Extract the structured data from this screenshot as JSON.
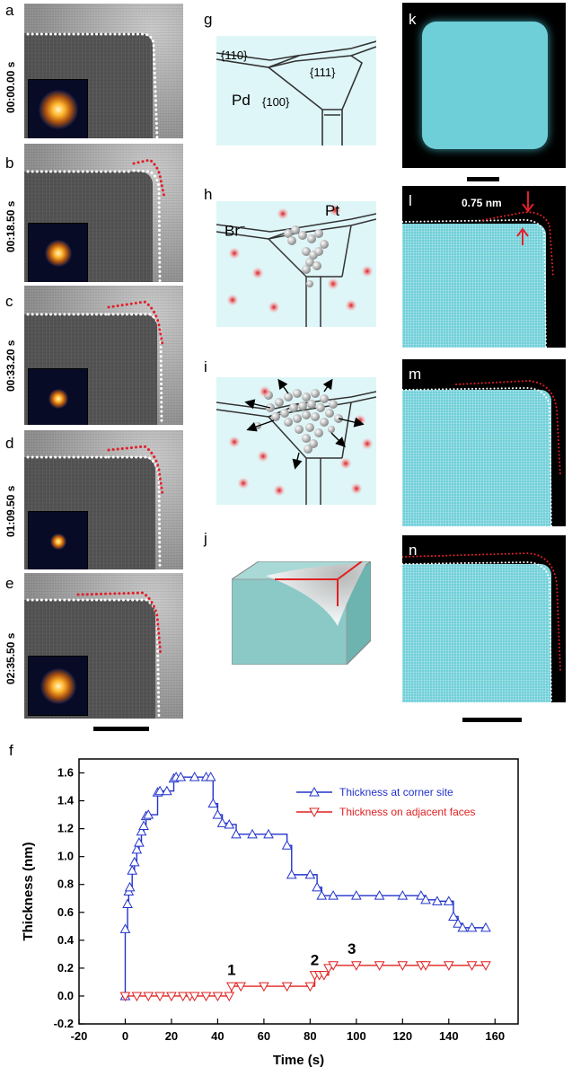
{
  "panels_left": [
    {
      "letter": "a",
      "time": "00:00.00 s"
    },
    {
      "letter": "b",
      "time": "00:18.50 s"
    },
    {
      "letter": "c",
      "time": "00:33.20 s"
    },
    {
      "letter": "d",
      "time": "01:09.50 s"
    },
    {
      "letter": "e",
      "time": "02:35.50 s"
    }
  ],
  "schematic": {
    "g_letter": "g",
    "g_face110": "{110}",
    "g_face111": "{111}",
    "g_pd": "Pd",
    "g_face100": "{100}",
    "h_letter": "h",
    "h_pt": "Pt",
    "h_br": "Br",
    "h_br_sup": "−",
    "i_letter": "i",
    "j_letter": "j"
  },
  "panels_right": {
    "k": "k",
    "l": "l",
    "l_annotation": "0.75 nm",
    "m": "m",
    "n": "n"
  },
  "colors": {
    "corner_series": "#2233cc",
    "faces_series": "#e02020",
    "crystal": "#6fcfd8",
    "schematic_bg": "#dff6f8",
    "dots_white": "#ffffff",
    "dots_red": "#e0202a"
  },
  "chart_data": {
    "type": "line",
    "panel_letter": "f",
    "xlabel": "Time (s)",
    "ylabel": "Thickness (nm)",
    "xlim": [
      -20,
      170
    ],
    "ylim": [
      -0.2,
      1.7
    ],
    "xticks": [
      -20,
      0,
      20,
      40,
      60,
      80,
      100,
      120,
      140,
      160
    ],
    "yticks": [
      -0.2,
      0.0,
      0.2,
      0.4,
      0.6,
      0.8,
      1.0,
      1.2,
      1.4,
      1.6
    ],
    "legend_position": "top-right",
    "annotations": [
      "1",
      "2",
      "3"
    ],
    "series": [
      {
        "name": "Thickness at corner site",
        "marker": "triangle-up",
        "x": [
          0,
          0,
          1,
          1.5,
          2,
          3,
          4,
          5,
          6,
          7,
          8,
          9,
          10,
          14,
          15,
          18,
          21,
          22,
          24,
          30,
          35,
          37,
          38,
          40,
          42,
          45,
          48,
          55,
          62,
          70,
          72,
          80,
          83,
          85,
          90,
          100,
          110,
          120,
          128,
          130,
          135,
          140,
          142,
          144,
          146,
          150,
          156
        ],
        "y": [
          0,
          0.48,
          0.66,
          0.75,
          0.78,
          0.9,
          0.96,
          1.05,
          1.1,
          1.18,
          1.22,
          1.29,
          1.3,
          1.46,
          1.47,
          1.47,
          1.56,
          1.57,
          1.57,
          1.57,
          1.57,
          1.57,
          1.38,
          1.3,
          1.24,
          1.23,
          1.16,
          1.16,
          1.16,
          1.08,
          0.87,
          0.87,
          0.78,
          0.72,
          0.72,
          0.72,
          0.72,
          0.72,
          0.72,
          0.69,
          0.68,
          0.68,
          0.57,
          0.52,
          0.49,
          0.49,
          0.49
        ]
      },
      {
        "name": "Thickness on adjacent faces",
        "marker": "triangle-down",
        "x": [
          0,
          5,
          10,
          15,
          20,
          25,
          28,
          30,
          35,
          40,
          45,
          46,
          50,
          60,
          70,
          80,
          82,
          84,
          86,
          88,
          90,
          100,
          110,
          120,
          128,
          130,
          140,
          150,
          156
        ],
        "y": [
          0,
          0,
          0,
          0,
          0,
          0,
          0,
          0,
          0,
          0,
          0,
          0.07,
          0.07,
          0.07,
          0.07,
          0.07,
          0.15,
          0.15,
          0.15,
          0.2,
          0.22,
          0.22,
          0.22,
          0.22,
          0.22,
          0.22,
          0.22,
          0.22,
          0.22
        ]
      }
    ]
  }
}
